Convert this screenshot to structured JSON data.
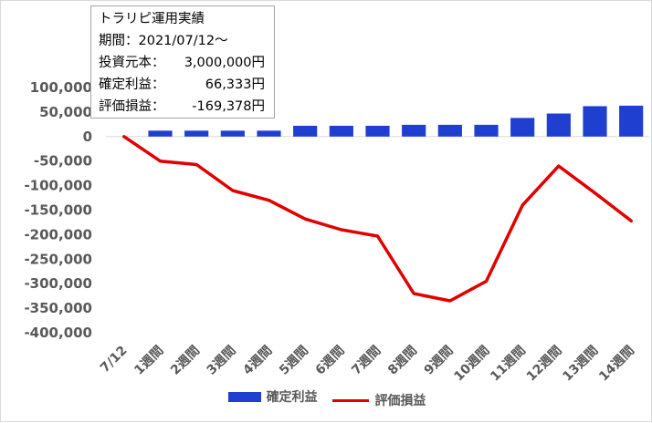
{
  "info_box": {
    "title": "トラリピ運用実績",
    "period_label": "期間：2021/07/12～",
    "rows": [
      {
        "label": "投資元本：",
        "value": "3,000,000円"
      },
      {
        "label": "確定利益：",
        "value": "66,333円"
      },
      {
        "label": "評価損益：",
        "value": "-169,378円"
      }
    ]
  },
  "legend": {
    "bar_label": "確定利益",
    "line_label": "評価損益"
  },
  "colors": {
    "bar": "#1f3fd1",
    "line": "#e00000",
    "grid": "#d9d9d9",
    "tick_text": "#595959"
  },
  "chart_data": {
    "type": "bar",
    "categories": [
      "7/12",
      "1週間",
      "2週間",
      "3週間",
      "4週間",
      "5週間",
      "6週間",
      "7週間",
      "8週間",
      "9週間",
      "10週間",
      "11週間",
      "12週間",
      "13週間",
      "14週間"
    ],
    "y_tick_labels": [
      "100,000",
      "50,000",
      "0",
      "-50,000",
      "-100,000",
      "-150,000",
      "-200,000",
      "-250,000",
      "-300,000",
      "-350,000",
      "-400,000"
    ],
    "ylim": [
      -400000,
      100000
    ],
    "grid": false,
    "legend_position": "bottom",
    "series": [
      {
        "name": "確定利益",
        "type": "bar",
        "values": [
          0,
          12000,
          12000,
          12000,
          12000,
          22000,
          22000,
          22000,
          24000,
          24000,
          24000,
          38000,
          47000,
          62000,
          63000
        ]
      },
      {
        "name": "評価損益",
        "type": "line",
        "values": [
          0,
          -50000,
          -57000,
          -110000,
          -130000,
          -168000,
          -190000,
          -203000,
          -320000,
          -335000,
          -295000,
          -140000,
          -60000,
          -115000,
          -172000
        ]
      }
    ]
  }
}
